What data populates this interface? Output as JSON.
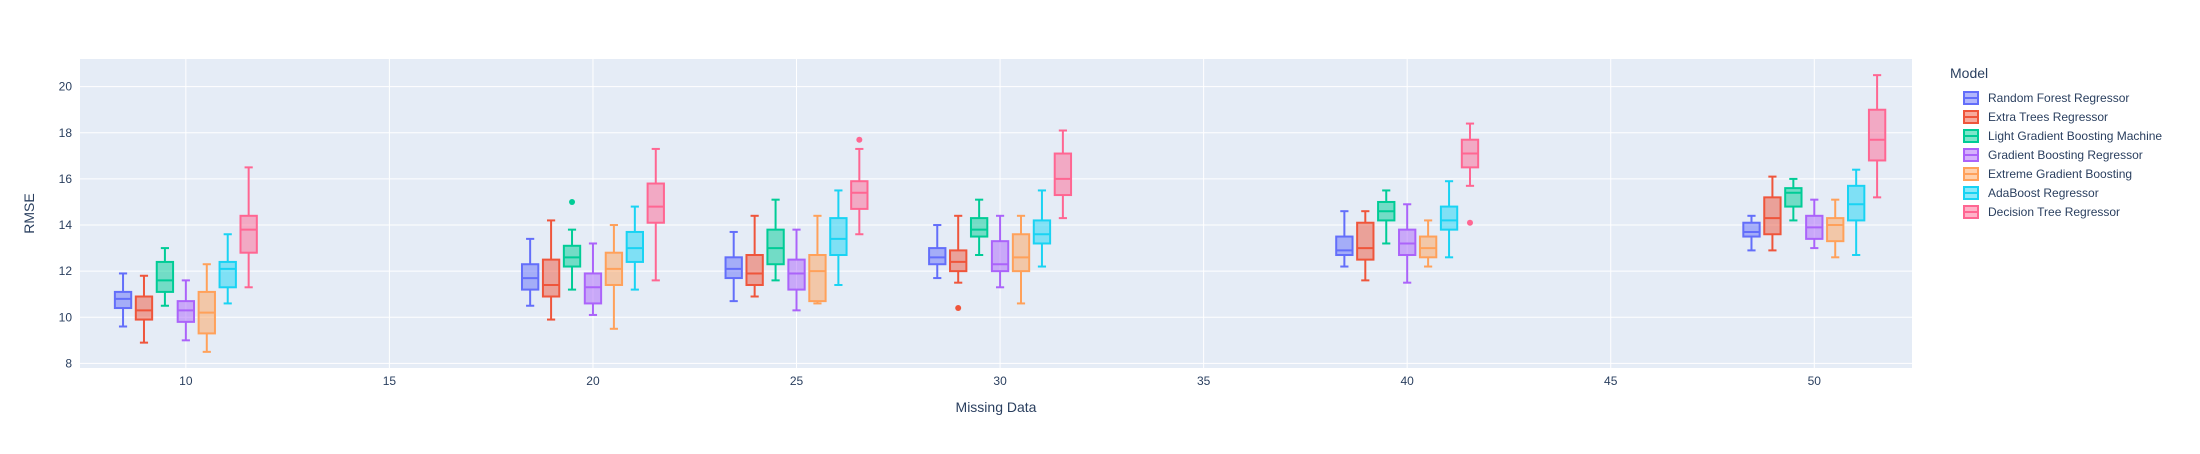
{
  "chart_data": {
    "type": "box",
    "xlabel": "Missing Data",
    "ylabel": "RMSE",
    "xlim": [
      7.4,
      52.4
    ],
    "ylim": [
      7.8,
      21.2
    ],
    "xticks": [
      10,
      15,
      20,
      25,
      30,
      35,
      40,
      45,
      50
    ],
    "yticks": [
      8,
      10,
      12,
      14,
      16,
      18,
      20
    ],
    "grid": true,
    "legend_title": "Model",
    "legend_position": "right",
    "plot_background": "#e5ecf6",
    "series": [
      {
        "name": "Random Forest Regressor",
        "color": "#636efa",
        "boxes": [
          {
            "x": 10,
            "lowerfence": 9.6,
            "q1": 10.4,
            "median": 10.8,
            "q3": 11.1,
            "upperfence": 11.9,
            "outliers": []
          },
          {
            "x": 20,
            "lowerfence": 10.5,
            "q1": 11.2,
            "median": 11.7,
            "q3": 12.3,
            "upperfence": 13.4,
            "outliers": []
          },
          {
            "x": 25,
            "lowerfence": 10.7,
            "q1": 11.7,
            "median": 12.1,
            "q3": 12.6,
            "upperfence": 13.7,
            "outliers": []
          },
          {
            "x": 30,
            "lowerfence": 11.7,
            "q1": 12.3,
            "median": 12.6,
            "q3": 13.0,
            "upperfence": 14.0,
            "outliers": []
          },
          {
            "x": 40,
            "lowerfence": 12.2,
            "q1": 12.7,
            "median": 12.9,
            "q3": 13.5,
            "upperfence": 14.6,
            "outliers": []
          },
          {
            "x": 50,
            "lowerfence": 12.9,
            "q1": 13.5,
            "median": 13.7,
            "q3": 14.1,
            "upperfence": 14.4,
            "outliers": []
          }
        ]
      },
      {
        "name": "Extra Trees Regressor",
        "color": "#ef553b",
        "boxes": [
          {
            "x": 10,
            "lowerfence": 8.9,
            "q1": 9.9,
            "median": 10.3,
            "q3": 10.9,
            "upperfence": 11.8,
            "outliers": []
          },
          {
            "x": 20,
            "lowerfence": 9.9,
            "q1": 10.9,
            "median": 11.4,
            "q3": 12.5,
            "upperfence": 14.2,
            "outliers": []
          },
          {
            "x": 25,
            "lowerfence": 10.9,
            "q1": 11.4,
            "median": 11.9,
            "q3": 12.7,
            "upperfence": 14.4,
            "outliers": []
          },
          {
            "x": 30,
            "lowerfence": 11.5,
            "q1": 12.0,
            "median": 12.4,
            "q3": 12.9,
            "upperfence": 14.4,
            "outliers": [
              10.4
            ]
          },
          {
            "x": 40,
            "lowerfence": 11.6,
            "q1": 12.5,
            "median": 13.0,
            "q3": 14.1,
            "upperfence": 14.6,
            "outliers": []
          },
          {
            "x": 50,
            "lowerfence": 12.9,
            "q1": 13.6,
            "median": 14.3,
            "q3": 15.2,
            "upperfence": 16.1,
            "outliers": []
          }
        ]
      },
      {
        "name": "Light Gradient Boosting Machine",
        "color": "#00cc96",
        "boxes": [
          {
            "x": 10,
            "lowerfence": 10.5,
            "q1": 11.1,
            "median": 11.6,
            "q3": 12.4,
            "upperfence": 13.0,
            "outliers": []
          },
          {
            "x": 20,
            "lowerfence": 11.2,
            "q1": 12.2,
            "median": 12.6,
            "q3": 13.1,
            "upperfence": 13.8,
            "outliers": [
              15.0
            ]
          },
          {
            "x": 25,
            "lowerfence": 11.6,
            "q1": 12.3,
            "median": 13.0,
            "q3": 13.8,
            "upperfence": 15.1,
            "outliers": []
          },
          {
            "x": 30,
            "lowerfence": 12.7,
            "q1": 13.5,
            "median": 13.8,
            "q3": 14.3,
            "upperfence": 15.1,
            "outliers": []
          },
          {
            "x": 40,
            "lowerfence": 13.2,
            "q1": 14.2,
            "median": 14.6,
            "q3": 15.0,
            "upperfence": 15.5,
            "outliers": []
          },
          {
            "x": 50,
            "lowerfence": 14.2,
            "q1": 14.8,
            "median": 15.4,
            "q3": 15.6,
            "upperfence": 16.0,
            "outliers": []
          }
        ]
      },
      {
        "name": "Gradient Boosting Regressor",
        "color": "#ab63fa",
        "boxes": [
          {
            "x": 10,
            "lowerfence": 9.0,
            "q1": 9.8,
            "median": 10.3,
            "q3": 10.7,
            "upperfence": 11.6,
            "outliers": []
          },
          {
            "x": 20,
            "lowerfence": 10.1,
            "q1": 10.6,
            "median": 11.3,
            "q3": 11.9,
            "upperfence": 13.2,
            "outliers": []
          },
          {
            "x": 25,
            "lowerfence": 10.3,
            "q1": 11.2,
            "median": 11.9,
            "q3": 12.5,
            "upperfence": 13.8,
            "outliers": []
          },
          {
            "x": 30,
            "lowerfence": 11.3,
            "q1": 12.0,
            "median": 12.3,
            "q3": 13.3,
            "upperfence": 14.4,
            "outliers": []
          },
          {
            "x": 40,
            "lowerfence": 11.5,
            "q1": 12.7,
            "median": 13.2,
            "q3": 13.8,
            "upperfence": 14.9,
            "outliers": []
          },
          {
            "x": 50,
            "lowerfence": 13.0,
            "q1": 13.4,
            "median": 13.9,
            "q3": 14.4,
            "upperfence": 15.1,
            "outliers": []
          }
        ]
      },
      {
        "name": "Extreme Gradient Boosting",
        "color": "#ffa15a",
        "boxes": [
          {
            "x": 10,
            "lowerfence": 8.5,
            "q1": 9.3,
            "median": 10.2,
            "q3": 11.1,
            "upperfence": 12.3,
            "outliers": []
          },
          {
            "x": 20,
            "lowerfence": 9.5,
            "q1": 11.4,
            "median": 12.1,
            "q3": 12.8,
            "upperfence": 14.0,
            "outliers": []
          },
          {
            "x": 25,
            "lowerfence": 10.6,
            "q1": 10.7,
            "median": 12.0,
            "q3": 12.7,
            "upperfence": 14.4,
            "outliers": []
          },
          {
            "x": 30,
            "lowerfence": 10.6,
            "q1": 12.0,
            "median": 12.6,
            "q3": 13.6,
            "upperfence": 14.4,
            "outliers": []
          },
          {
            "x": 40,
            "lowerfence": 12.2,
            "q1": 12.6,
            "median": 13.0,
            "q3": 13.5,
            "upperfence": 14.2,
            "outliers": []
          },
          {
            "x": 50,
            "lowerfence": 12.6,
            "q1": 13.3,
            "median": 14.0,
            "q3": 14.3,
            "upperfence": 15.1,
            "outliers": []
          }
        ]
      },
      {
        "name": "AdaBoost Regressor",
        "color": "#19d3f3",
        "boxes": [
          {
            "x": 10,
            "lowerfence": 10.6,
            "q1": 11.3,
            "median": 12.1,
            "q3": 12.4,
            "upperfence": 13.6,
            "outliers": []
          },
          {
            "x": 20,
            "lowerfence": 11.2,
            "q1": 12.4,
            "median": 13.0,
            "q3": 13.7,
            "upperfence": 14.8,
            "outliers": []
          },
          {
            "x": 25,
            "lowerfence": 11.4,
            "q1": 12.7,
            "median": 13.4,
            "q3": 14.3,
            "upperfence": 15.5,
            "outliers": []
          },
          {
            "x": 30,
            "lowerfence": 12.2,
            "q1": 13.2,
            "median": 13.6,
            "q3": 14.2,
            "upperfence": 15.5,
            "outliers": []
          },
          {
            "x": 40,
            "lowerfence": 12.6,
            "q1": 13.8,
            "median": 14.2,
            "q3": 14.8,
            "upperfence": 15.9,
            "outliers": []
          },
          {
            "x": 50,
            "lowerfence": 12.7,
            "q1": 14.2,
            "median": 14.9,
            "q3": 15.7,
            "upperfence": 16.4,
            "outliers": []
          }
        ]
      },
      {
        "name": "Decision Tree Regressor",
        "color": "#ff6692",
        "boxes": [
          {
            "x": 10,
            "lowerfence": 11.3,
            "q1": 12.8,
            "median": 13.8,
            "q3": 14.4,
            "upperfence": 16.5,
            "outliers": []
          },
          {
            "x": 20,
            "lowerfence": 11.6,
            "q1": 14.1,
            "median": 14.8,
            "q3": 15.8,
            "upperfence": 17.3,
            "outliers": []
          },
          {
            "x": 25,
            "lowerfence": 13.6,
            "q1": 14.7,
            "median": 15.4,
            "q3": 15.9,
            "upperfence": 17.3,
            "outliers": [
              17.7
            ]
          },
          {
            "x": 30,
            "lowerfence": 14.3,
            "q1": 15.3,
            "median": 16.0,
            "q3": 17.1,
            "upperfence": 18.1,
            "outliers": []
          },
          {
            "x": 40,
            "lowerfence": 15.7,
            "q1": 16.5,
            "median": 17.1,
            "q3": 17.7,
            "upperfence": 18.4,
            "outliers": [
              14.1
            ]
          },
          {
            "x": 50,
            "lowerfence": 15.2,
            "q1": 16.8,
            "median": 17.7,
            "q3": 19.0,
            "upperfence": 20.5,
            "outliers": []
          }
        ]
      }
    ]
  }
}
